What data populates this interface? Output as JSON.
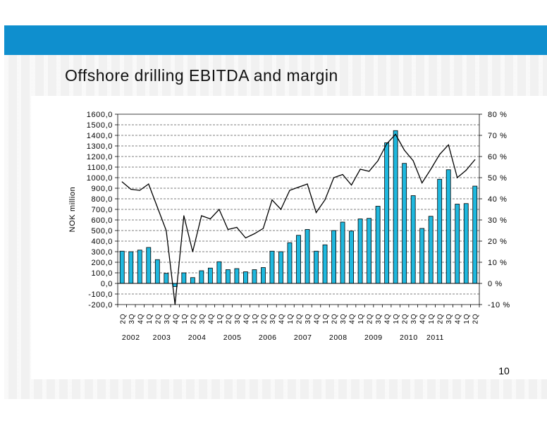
{
  "slide": {
    "title": "Offshore drilling EBITDA and margin",
    "page_number": "10"
  },
  "colors": {
    "header_bar": "#0f8fce",
    "bar_fill": "#1fb8de",
    "bar_stroke": "#000000",
    "line": "#000000"
  },
  "chart_data": {
    "type": "bar",
    "title": "",
    "ylabel": "NOK million",
    "ylabel_right": "",
    "ylim": [
      -200,
      1600
    ],
    "y2lim": [
      -10,
      80
    ],
    "y_tick_labels": [
      "-200,0",
      "-100,0",
      "0,0",
      "100,0",
      "200,0",
      "300,0",
      "400,0",
      "500,0",
      "600,0",
      "700,0",
      "800,0",
      "900,0",
      "1000,0",
      "1100,0",
      "1200,0",
      "1300,0",
      "1400,0",
      "1500,0",
      "1600,0"
    ],
    "y2_tick_labels": [
      "-10 %",
      "0 %",
      "10 %",
      "20 %",
      "30 %",
      "40 %",
      "50 %",
      "60 %",
      "70 %",
      "80 %"
    ],
    "grid": "horizontal dashed",
    "legend": "none",
    "categories": [
      "2Q",
      "3Q",
      "4Q",
      "1Q",
      "2Q",
      "3Q",
      "4Q",
      "1Q",
      "2Q",
      "3Q",
      "4Q",
      "1Q",
      "2Q",
      "3Q",
      "4Q",
      "1Q",
      "2Q",
      "3Q",
      "4Q",
      "1Q",
      "2Q",
      "3Q",
      "4Q",
      "1Q",
      "2Q",
      "3Q",
      "4Q",
      "1Q",
      "2Q",
      "3Q",
      "4Q",
      "1Q",
      "2Q",
      "3Q",
      "4Q",
      "1Q",
      "2Q",
      "3Q",
      "4Q",
      "1Q",
      "2Q"
    ],
    "year_groups": [
      {
        "label": "2002",
        "start": 0,
        "end": 2
      },
      {
        "label": "2003",
        "start": 3,
        "end": 6
      },
      {
        "label": "2004",
        "start": 7,
        "end": 10
      },
      {
        "label": "2005",
        "start": 11,
        "end": 14
      },
      {
        "label": "2006",
        "start": 15,
        "end": 18
      },
      {
        "label": "2007",
        "start": 19,
        "end": 22
      },
      {
        "label": "2008",
        "start": 23,
        "end": 26
      },
      {
        "label": "2009",
        "start": 27,
        "end": 30
      },
      {
        "label": "2010",
        "start": 31,
        "end": 34
      },
      {
        "label": "2011",
        "start": 35,
        "end": 36
      }
    ],
    "series": [
      {
        "type": "bar",
        "axis": "left",
        "values": [
          305,
          300,
          315,
          340,
          225,
          95,
          -30,
          100,
          55,
          120,
          145,
          205,
          130,
          140,
          110,
          130,
          150,
          305,
          300,
          385,
          455,
          510,
          305,
          365,
          500,
          580,
          495,
          610,
          615,
          730,
          1330,
          1445,
          1135,
          830,
          520,
          635,
          985,
          1075,
          750,
          755,
          920
        ]
      },
      {
        "type": "line",
        "axis": "right",
        "values": [
          48,
          44.5,
          44,
          47,
          36,
          25,
          -10,
          32,
          15,
          32,
          30.5,
          35,
          25.5,
          26.5,
          21.5,
          23.5,
          26,
          39.5,
          35,
          44,
          45.5,
          47,
          33.5,
          39.5,
          50,
          51.5,
          46.5,
          54,
          53,
          58,
          66,
          70.5,
          63,
          58,
          47.5,
          54,
          61,
          65.5,
          50,
          53.5,
          58.5
        ]
      }
    ]
  }
}
